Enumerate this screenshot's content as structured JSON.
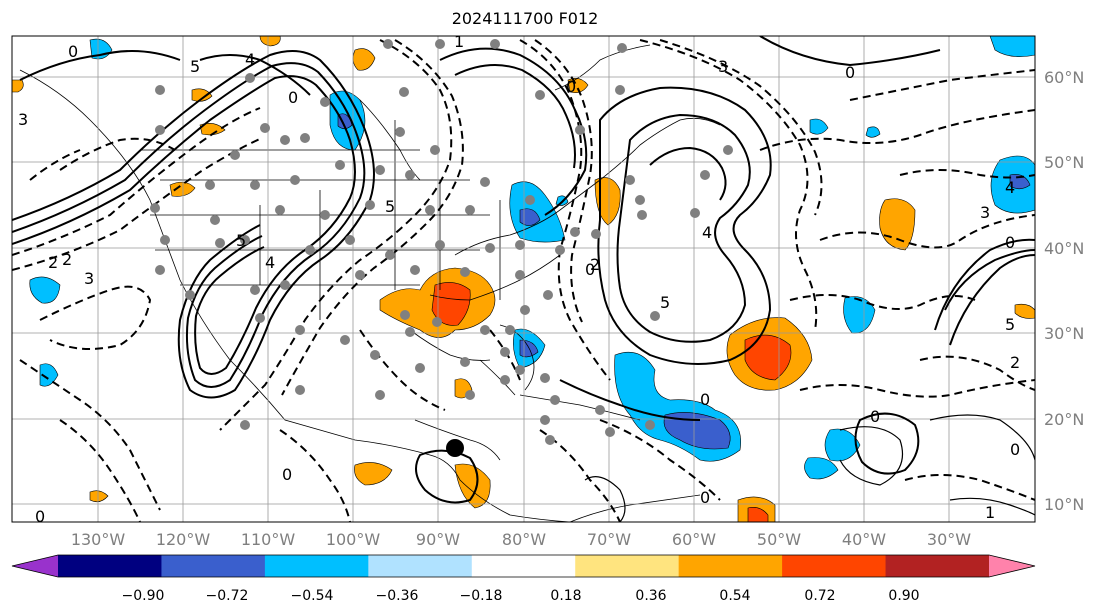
{
  "title": "2024111700 F012",
  "lon_labels": [
    "130°W",
    "120°W",
    "110°W",
    "100°W",
    "90°W",
    "80°W",
    "70°W",
    "60°W",
    "50°W",
    "40°W",
    "30°W"
  ],
  "lat_labels": [
    "60°N",
    "50°N",
    "40°N",
    "30°N",
    "20°N",
    "10°N"
  ],
  "colorbar": {
    "tick_labels": [
      "−0.90",
      "−0.72",
      "−0.54",
      "−0.36",
      "−0.18",
      "0.18",
      "0.36",
      "0.54",
      "0.72",
      "0.90"
    ],
    "colors": [
      "#9932cc",
      "#000080",
      "#3a5fcd",
      "#00bfff",
      "#b0e2ff",
      "#ffffff",
      "#ffe47f",
      "#ffa500",
      "#ff4500",
      "#b22222",
      "#ff82ab"
    ]
  },
  "contour_labels": [
    "0",
    "5",
    "4",
    "3",
    "2",
    "0",
    "5",
    "4",
    "3",
    "2",
    "1",
    "0",
    "5",
    "4",
    "3",
    "0",
    "0",
    "0",
    "0",
    "5",
    "3",
    "2",
    "4",
    "5",
    "2",
    "0",
    "0",
    "0",
    "0",
    "1",
    "0"
  ]
}
